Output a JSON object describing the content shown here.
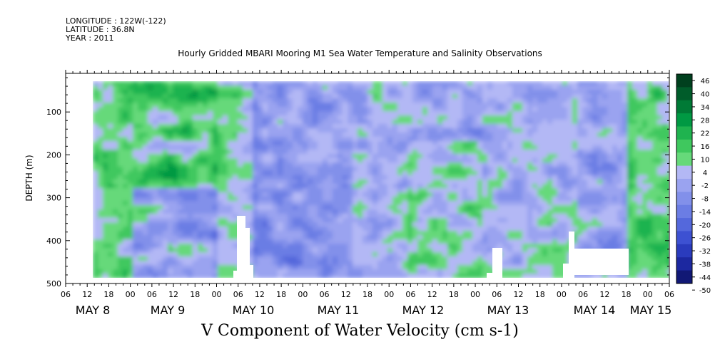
{
  "header": {
    "longitude": "LONGITUDE : 122W(-122)",
    "latitude": "LATITUDE : 36.8N",
    "year": "YEAR : 2011"
  },
  "chart_data": {
    "type": "heatmap",
    "title": "Hourly Gridded MBARI Mooring M1 Sea Water Temperature and Salinity Observations",
    "bottom_title": "V Component of Water Velocity (cm s-1)",
    "ylabel": "DEPTH (m)",
    "ylim": [
      500,
      10
    ],
    "y_ticks": [
      100,
      200,
      300,
      400,
      500
    ],
    "x_hour_labels": [
      "06",
      "12",
      "18",
      "00",
      "06",
      "12",
      "18",
      "00",
      "06",
      "12",
      "18",
      "00",
      "06",
      "12",
      "18",
      "00",
      "06",
      "12",
      "18",
      "00",
      "06",
      "12",
      "18",
      "00",
      "06",
      "12",
      "18",
      "00",
      "06"
    ],
    "x_day_labels": [
      "MAY  8",
      "MAY  9",
      "MAY 10",
      "MAY 11",
      "MAY 12",
      "MAY 13",
      "MAY 14",
      "MAY 15"
    ],
    "colorbar_levels": [
      46,
      40,
      34,
      28,
      22,
      16,
      10,
      4,
      -2,
      -8,
      -14,
      -20,
      -26,
      -32,
      -38,
      -44,
      -50
    ],
    "colors": {
      "positive": [
        "#00401e",
        "#005c2a",
        "#007a36",
        "#009943",
        "#1fb34f",
        "#3fc85e",
        "#66d97a",
        "#99ea9f"
      ],
      "negative": [
        "#b3b8f5",
        "#9aa3f0",
        "#8290ea",
        "#6b7de4",
        "#5468dc",
        "#3d51d2",
        "#2a3bbd",
        "#1c28a0",
        "#111875"
      ]
    },
    "colorbar_label_positions": "right",
    "data_start": "May 8 14:00",
    "data_end": "May 15 08:00",
    "depth_range": [
      20,
      485
    ]
  }
}
